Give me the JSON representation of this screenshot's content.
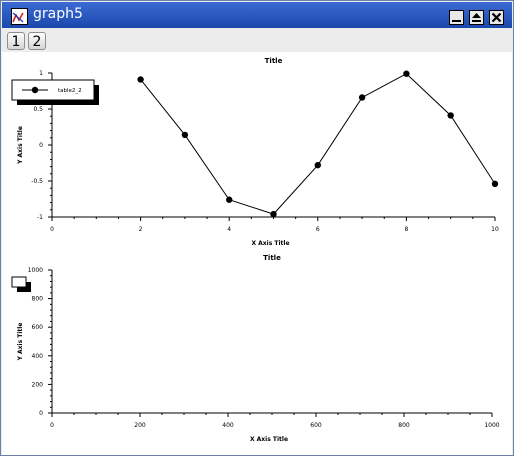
{
  "window": {
    "title": "graph5",
    "icon": "graph-app-icon",
    "controls": [
      "minimize",
      "maximize",
      "close"
    ]
  },
  "toolbar": {
    "tabs": [
      {
        "label": "1"
      },
      {
        "label": "2"
      }
    ]
  },
  "chart_data": [
    {
      "type": "line",
      "title": "Title",
      "xlabel": "X Axis Title",
      "ylabel": "Y Axis Title",
      "xlim": [
        0,
        10
      ],
      "ylim": [
        -1,
        1
      ],
      "xticks": [
        "0",
        "2",
        "4",
        "6",
        "8",
        "10"
      ],
      "yticks": [
        "1",
        "0.5",
        "0",
        "-0.5",
        "-1"
      ],
      "legend_position": "top-left",
      "series": [
        {
          "name": "table2_2",
          "color": "#000000",
          "marker": "circle",
          "x": [
            2,
            3,
            4,
            5,
            6,
            7,
            8,
            9,
            10
          ],
          "y": [
            0.91,
            0.14,
            -0.76,
            -0.96,
            -0.28,
            0.66,
            0.99,
            0.41,
            -0.54
          ]
        }
      ]
    },
    {
      "type": "line",
      "title": "Title",
      "xlabel": "X Axis Title",
      "ylabel": "Y Axis Title",
      "xlim": [
        0,
        1000
      ],
      "ylim": [
        0,
        1000
      ],
      "xticks": [
        "0",
        "200",
        "400",
        "600",
        "800",
        "1000"
      ],
      "yticks": [
        "1000",
        "800",
        "600",
        "400",
        "200",
        "0"
      ],
      "legend_position": "top-left",
      "series": []
    }
  ]
}
